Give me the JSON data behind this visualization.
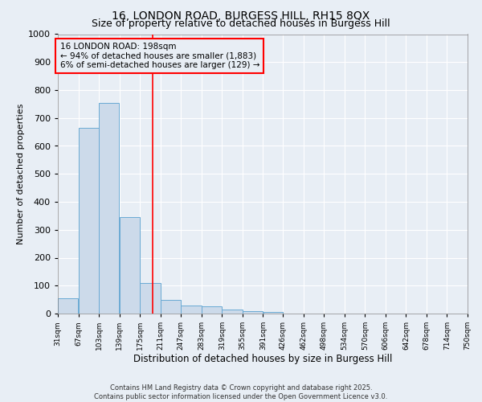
{
  "title_line1": "16, LONDON ROAD, BURGESS HILL, RH15 8QX",
  "title_line2": "Size of property relative to detached houses in Burgess Hill",
  "xlabel": "Distribution of detached houses by size in Burgess Hill",
  "ylabel": "Number of detached properties",
  "bar_edges": [
    31,
    67,
    103,
    139,
    175,
    211,
    247,
    283,
    319,
    355,
    391,
    426,
    462,
    498,
    534,
    570,
    606,
    642,
    678,
    714,
    750
  ],
  "bar_heights": [
    55,
    665,
    755,
    345,
    110,
    50,
    30,
    25,
    15,
    10,
    5,
    0,
    0,
    0,
    0,
    0,
    0,
    0,
    0,
    0
  ],
  "bar_color": "#ccdaea",
  "bar_edgecolor": "#6aaad4",
  "ylim": [
    0,
    1000
  ],
  "xlim": [
    31,
    750
  ],
  "vline_x": 198,
  "vline_color": "red",
  "annotation_line1": "16 LONDON ROAD: 198sqm",
  "annotation_line2": "← 94% of detached houses are smaller (1,883)",
  "annotation_line3": "6% of semi-detached houses are larger (129) →",
  "annotation_box_color": "red",
  "annotation_fontsize": 7.5,
  "bg_color": "#e8eef5",
  "grid_color": "white",
  "title_fontsize": 10,
  "subtitle_fontsize": 9,
  "xlabel_fontsize": 8.5,
  "ylabel_fontsize": 8,
  "tick_labels": [
    "31sqm",
    "67sqm",
    "103sqm",
    "139sqm",
    "175sqm",
    "211sqm",
    "247sqm",
    "283sqm",
    "319sqm",
    "355sqm",
    "391sqm",
    "426sqm",
    "462sqm",
    "498sqm",
    "534sqm",
    "570sqm",
    "606sqm",
    "642sqm",
    "678sqm",
    "714sqm",
    "750sqm"
  ],
  "footer_line1": "Contains HM Land Registry data © Crown copyright and database right 2025.",
  "footer_line2": "Contains public sector information licensed under the Open Government Licence v3.0."
}
